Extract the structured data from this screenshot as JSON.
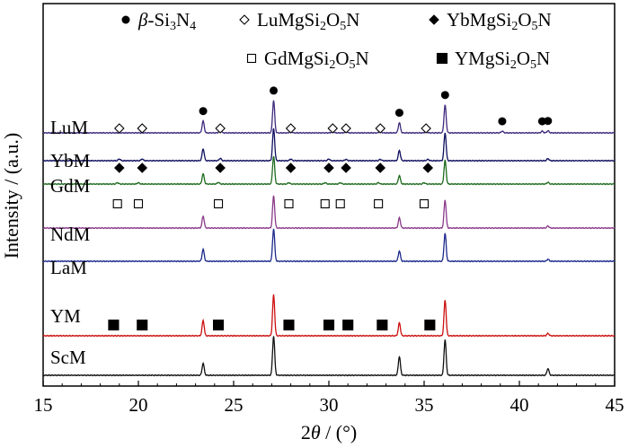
{
  "chart_data": {
    "type": "line",
    "xlabel_parts": [
      "2",
      "θ",
      " / (°)"
    ],
    "ylabel": "Intensity / (a.u.)",
    "xlim": [
      15,
      45
    ],
    "x_ticks": [
      15,
      20,
      25,
      30,
      35,
      40,
      45
    ],
    "y_ticks_shown": false,
    "grid": false,
    "legend_position": "top",
    "legend": [
      {
        "marker": "filled-circle",
        "label": [
          "β",
          "-Si",
          "3",
          "N",
          "4"
        ]
      },
      {
        "marker": "open-diamond",
        "label": [
          "LuMgSi",
          "2",
          "O",
          "5",
          "N"
        ]
      },
      {
        "marker": "filled-diamond",
        "label": [
          "YbMgSi",
          "2",
          "O",
          "5",
          "N"
        ]
      },
      {
        "marker": "open-square",
        "label": [
          "GdMgSi",
          "2",
          "O",
          "5",
          "N"
        ]
      },
      {
        "marker": "filled-square",
        "label": [
          "YMgSi",
          "2",
          "O",
          "5",
          "N"
        ]
      }
    ],
    "series": [
      {
        "name": "LuM",
        "color": "#3f2a7d",
        "peaks": [
          [
            23.4,
            0.35
          ],
          [
            24.3,
            0.12
          ],
          [
            27.1,
            0.95
          ],
          [
            28.0,
            0.06
          ],
          [
            30.2,
            0.06
          ],
          [
            30.9,
            0.05
          ],
          [
            32.7,
            0.06
          ],
          [
            33.7,
            0.3
          ],
          [
            35.1,
            0.05
          ],
          [
            36.1,
            0.82
          ],
          [
            39.1,
            0.05
          ],
          [
            41.2,
            0.05
          ],
          [
            41.5,
            0.06
          ]
        ],
        "markers": [
          {
            "type": "filled-circle",
            "x": [
              23.4,
              27.1,
              33.7,
              36.1,
              39.1,
              41.2,
              41.5
            ]
          },
          {
            "type": "open-diamond",
            "x": [
              19.0,
              20.2,
              24.3,
              28.0,
              30.2,
              30.9,
              32.7,
              35.1
            ]
          }
        ]
      },
      {
        "name": "YbM",
        "color": "#101060",
        "peaks": [
          [
            19.0,
            0.05
          ],
          [
            20.2,
            0.05
          ],
          [
            23.4,
            0.35
          ],
          [
            24.3,
            0.07
          ],
          [
            27.1,
            0.95
          ],
          [
            28.0,
            0.05
          ],
          [
            30.0,
            0.05
          ],
          [
            30.9,
            0.04
          ],
          [
            32.7,
            0.04
          ],
          [
            33.7,
            0.3
          ],
          [
            35.2,
            0.04
          ],
          [
            36.1,
            0.82
          ],
          [
            41.5,
            0.06
          ]
        ],
        "markers": [
          {
            "type": "filled-diamond",
            "x": [
              19.0,
              20.2,
              24.3,
              28.0,
              30.0,
              30.9,
              32.7,
              35.2
            ]
          }
        ]
      },
      {
        "name": "GdM",
        "color": "#1e6b1e",
        "peaks": [
          [
            18.9,
            0.04
          ],
          [
            20.0,
            0.04
          ],
          [
            23.4,
            0.3
          ],
          [
            24.2,
            0.05
          ],
          [
            27.1,
            0.82
          ],
          [
            27.9,
            0.04
          ],
          [
            29.8,
            0.04
          ],
          [
            30.6,
            0.04
          ],
          [
            32.6,
            0.04
          ],
          [
            33.7,
            0.25
          ],
          [
            35.0,
            0.04
          ],
          [
            36.1,
            0.7
          ],
          [
            41.5,
            0.05
          ]
        ],
        "markers": [
          {
            "type": "open-square",
            "x": [
              18.9,
              20.0,
              24.2,
              27.9,
              29.8,
              30.6,
              32.6,
              35.0
            ]
          }
        ]
      },
      {
        "name": "NdM",
        "color": "#8a3a8a",
        "peaks": [
          [
            23.4,
            0.35
          ],
          [
            27.1,
            0.95
          ],
          [
            33.7,
            0.3
          ],
          [
            36.1,
            0.82
          ],
          [
            41.5,
            0.06
          ]
        ],
        "markers": []
      },
      {
        "name": "LaM",
        "color": "#1c2a8c",
        "peaks": [
          [
            23.4,
            0.35
          ],
          [
            27.1,
            0.95
          ],
          [
            33.7,
            0.3
          ],
          [
            36.1,
            0.82
          ],
          [
            41.5,
            0.06
          ]
        ],
        "markers": []
      },
      {
        "name": "YM",
        "color": "#cc1010",
        "peaks": [
          [
            23.4,
            0.45
          ],
          [
            27.1,
            1.2
          ],
          [
            33.7,
            0.38
          ],
          [
            36.1,
            1.05
          ],
          [
            41.5,
            0.07
          ]
        ],
        "markers": [
          {
            "type": "filled-square",
            "x": [
              18.7,
              20.2,
              24.2,
              27.9,
              30.0,
              31.0,
              32.8,
              35.3
            ]
          }
        ]
      },
      {
        "name": "ScM",
        "color": "#111111",
        "peaks": [
          [
            23.4,
            0.35
          ],
          [
            27.1,
            1.15
          ],
          [
            33.7,
            0.55
          ],
          [
            36.1,
            1.05
          ],
          [
            41.5,
            0.2
          ]
        ],
        "markers": []
      }
    ]
  }
}
